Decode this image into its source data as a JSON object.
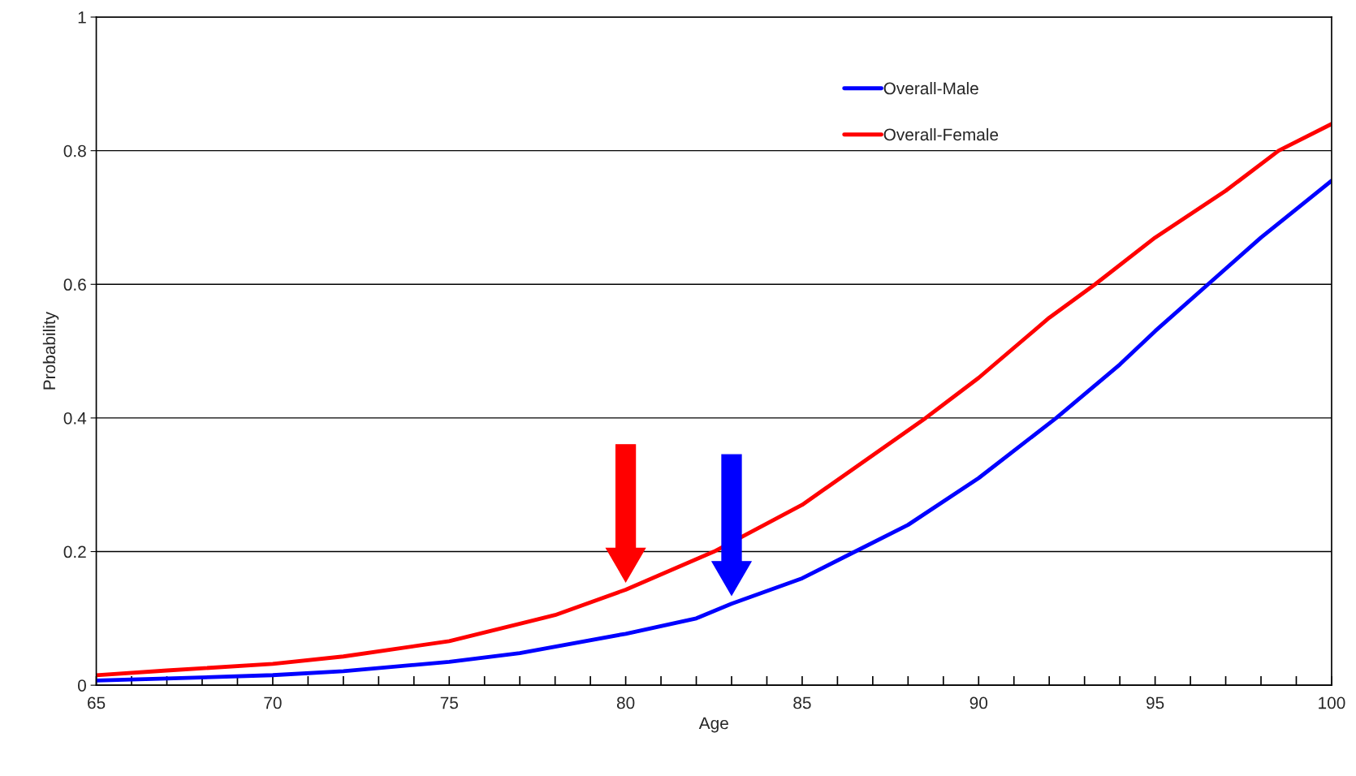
{
  "chart_data": {
    "type": "line",
    "xlabel": "Age",
    "ylabel": "Probability",
    "x": [
      65,
      67,
      70,
      72,
      75,
      77,
      80,
      82,
      83,
      85,
      86.5,
      88,
      90,
      92.2,
      94,
      95,
      96.5,
      98,
      100
    ],
    "series": [
      {
        "name": "Overall-Male",
        "color": "#0000ff",
        "values": [
          0.007,
          0.01,
          0.015,
          0.021,
          0.035,
          0.048,
          0.077,
          0.1,
          0.122,
          0.16,
          0.2,
          0.24,
          0.31,
          0.4,
          0.48,
          0.53,
          0.6,
          0.67,
          0.755
        ]
      },
      {
        "name": "Overall-Female",
        "color": "#ff0000",
        "x": [
          65,
          67,
          70,
          72,
          75,
          78,
          80,
          82.5,
          85,
          88.5,
          90,
          92,
          93.3,
          95,
          97,
          98.5,
          100
        ],
        "values": [
          0.015,
          0.022,
          0.032,
          0.043,
          0.066,
          0.105,
          0.143,
          0.2,
          0.27,
          0.4,
          0.46,
          0.55,
          0.6,
          0.67,
          0.74,
          0.8,
          0.84
        ]
      }
    ],
    "xlim": [
      65,
      100
    ],
    "xticks": [
      65,
      {
        "value": 66,
        "label": null
      },
      {
        "value": 67,
        "label": null
      },
      {
        "value": 68,
        "label": null
      },
      {
        "value": 69,
        "label": null
      },
      70,
      {
        "value": 71,
        "label": null
      },
      {
        "value": 72,
        "label": null
      },
      {
        "value": 73,
        "label": null
      },
      {
        "value": 74,
        "label": null
      },
      75,
      {
        "value": 76,
        "label": null
      },
      {
        "value": 77,
        "label": null
      },
      {
        "value": 78,
        "label": null
      },
      {
        "value": 79,
        "label": null
      },
      80,
      {
        "value": 81,
        "label": null
      },
      {
        "value": 82,
        "label": null
      },
      {
        "value": 83,
        "label": null
      },
      {
        "value": 84,
        "label": null
      },
      85,
      {
        "value": 86,
        "label": null
      },
      {
        "value": 87,
        "label": null
      },
      {
        "value": 88,
        "label": null
      },
      {
        "value": 89,
        "label": null
      },
      90,
      {
        "value": 91,
        "label": null
      },
      {
        "value": 92,
        "label": null
      },
      {
        "value": 93,
        "label": null
      },
      {
        "value": 94,
        "label": null
      },
      95,
      {
        "value": 96,
        "label": null
      },
      {
        "value": 97,
        "label": null
      },
      {
        "value": 98,
        "label": null
      },
      {
        "value": 99,
        "label": null
      },
      100
    ],
    "ylim": [
      0,
      1
    ],
    "yticks": [
      0,
      0.2,
      0.4,
      0.6,
      0.8,
      1
    ],
    "grid": "y",
    "legend": "top right",
    "line_style": "solid",
    "marker": "none"
  }
}
